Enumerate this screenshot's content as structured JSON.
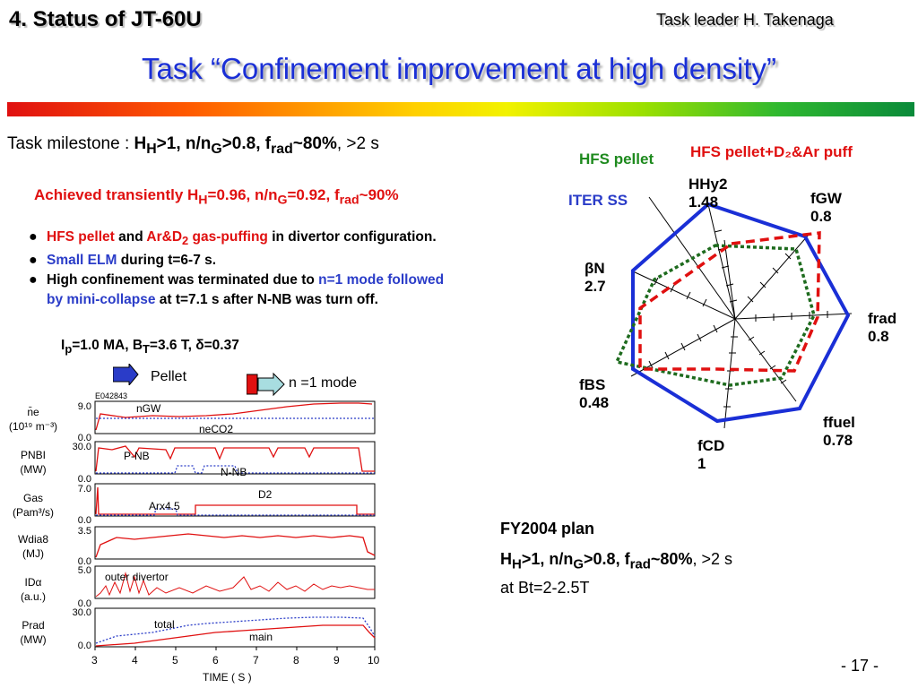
{
  "header": {
    "section_title": "4.  Status of JT-60U",
    "task_leader": "Task leader  H. Takenaga",
    "main_title": "Task “Confinement improvement at high density”"
  },
  "milestone": {
    "prefix": "Task milestone : ",
    "hh": "H",
    "hh_sub": "H",
    "cond1": ">1, n/n",
    "g_sub": "G",
    "cond2": ">0.8, f",
    "rad_sub": "rad",
    "cond3": "~80%",
    "suffix": ", >2 s"
  },
  "achieved": {
    "a1": "Achieved transiently H",
    "a_sub1": "H",
    "a2": "=0.96, n/n",
    "a_sub2": "G",
    "a3": "=0.92, f",
    "a_sub3": "rad",
    "a4": "~90%"
  },
  "bullets": {
    "b1_red1": "HFS pellet",
    "b1_and": " and ",
    "b1_red2": "Ar&D",
    "b1_red2_sub": "2",
    "b1_red3": " gas-puffing",
    "b1_rest": " in divertor configuration.",
    "b2_blue": "Small ELM",
    "b2_rest": " during t=6-7 s.",
    "b3_start": "High confinement was terminated due to ",
    "b3_blue1": "n=1 mode followed",
    "b3_blue2": "by mini-collapse",
    "b3_end": " at t=7.1 s after N-NB was turn off."
  },
  "conditions": {
    "ip": "I",
    "ip_sub": "p",
    "c1": "=1.0 MA, B",
    "bt_sub": "T",
    "c2": "=3.6 T, ",
    "delta": "δ",
    "c3": "=0.37"
  },
  "plot": {
    "shot_id": "E042843",
    "pellet_label": "Pellet",
    "nmode_label": "n =1 mode",
    "x_axis_label": "TIME ( S )",
    "x_ticks": [
      "3",
      "4",
      "5",
      "6",
      "7",
      "8",
      "9",
      "10"
    ],
    "panels": [
      {
        "label_lines": [
          "n̄e",
          "(10¹⁹ m⁻³)"
        ],
        "ymax": "9.0",
        "ymin": "0.0",
        "trace_labels": [
          "nGW",
          "neCO2"
        ]
      },
      {
        "label_lines": [
          "PNBI",
          "(MW)"
        ],
        "ymax": "30.0",
        "ymin": "0.0",
        "trace_labels": [
          "P-NB",
          "N-NB"
        ]
      },
      {
        "label_lines": [
          "Gas",
          "(Pam³/s)"
        ],
        "ymax": "7.0",
        "ymin": "0.0",
        "trace_labels": [
          "Arx4.5",
          "D2"
        ]
      },
      {
        "label_lines": [
          "Wdia8",
          "(MJ)"
        ],
        "ymax": "3.5",
        "ymin": "0.0",
        "trace_labels": []
      },
      {
        "label_lines": [
          "IDα",
          "(a.u.)"
        ],
        "ymax": "5.0",
        "ymin": "0.0",
        "trace_labels": [
          "outer divertor"
        ]
      },
      {
        "label_lines": [
          "Prad",
          "(MW)"
        ],
        "ymax": "30.0",
        "ymin": "0.0",
        "trace_labels": [
          "total",
          "main"
        ]
      }
    ]
  },
  "radar": {
    "legend_hfs_pellet": "HFS pellet",
    "legend_hfs_pellet_d2ar": "HFS pellet+D₂&Ar puff",
    "legend_iter_ss": "ITER SS",
    "axes": [
      {
        "name": "HHy2",
        "value": "1.48"
      },
      {
        "name": "fGW",
        "value": "0.8"
      },
      {
        "name": "frad",
        "value": "0.8"
      },
      {
        "name": "ffuel",
        "value": "0.78"
      },
      {
        "name": "fCD",
        "value": "1"
      },
      {
        "name": "fBS",
        "value": "0.48"
      },
      {
        "name": "βN",
        "value": "2.7"
      }
    ],
    "colors": {
      "iter_ss": "#1a2fd6",
      "hfs_pellet": "#1e6b1e",
      "hfs_pellet_puff": "#e01010"
    }
  },
  "plan": {
    "title": "FY2004 plan",
    "l2": "H",
    "l2_sub1": "H",
    "l2_b": ">1, n/n",
    "l2_sub2": "G",
    "l2_c": ">0.8, f",
    "l2_sub3": "rad",
    "l2_d": "~80%",
    "l2_e": ", >2 s",
    "l3": "at Bt=2-2.5T"
  },
  "footer": {
    "page": "- 17 -"
  }
}
